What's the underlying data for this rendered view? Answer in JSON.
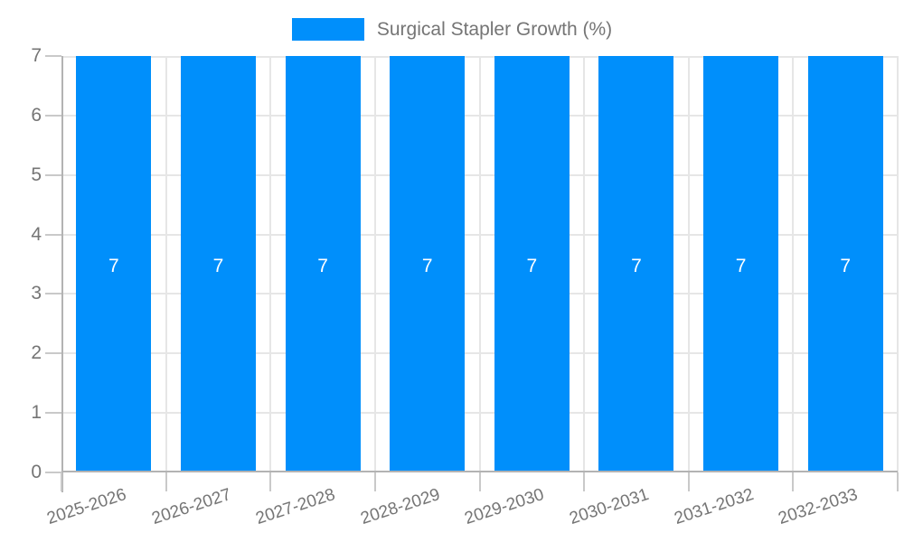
{
  "page": {
    "background": "#ffffff"
  },
  "colors": {
    "page_bg": "#ffffff",
    "bar": "#008FFB",
    "text": "#757575",
    "grid": "#e6e6e6",
    "axis": "#b3b3b3",
    "tick": "#c9c9c9",
    "value_label": "#ffffff"
  },
  "legend": {
    "position": "top",
    "label": "Surgical Stapler Growth (%)"
  },
  "chart_data": {
    "type": "bar",
    "title": "Surgical Stapler Growth (%)",
    "categories": [
      "2025-2026",
      "2026-2027",
      "2027-2028",
      "2028-2029",
      "2029-2030",
      "2030-2031",
      "2031-2032",
      "2032-2033"
    ],
    "values": [
      7,
      7,
      7,
      7,
      7,
      7,
      7,
      7
    ],
    "bar_value_labels": [
      "7",
      "7",
      "7",
      "7",
      "7",
      "7",
      "7",
      "7"
    ],
    "xlabel": "",
    "ylabel": "",
    "ylim": [
      0,
      7
    ],
    "yticks": [
      0,
      1,
      2,
      3,
      4,
      5,
      6,
      7
    ],
    "grid": true,
    "legend_position": "top",
    "x_label_rotation_deg": -18
  }
}
